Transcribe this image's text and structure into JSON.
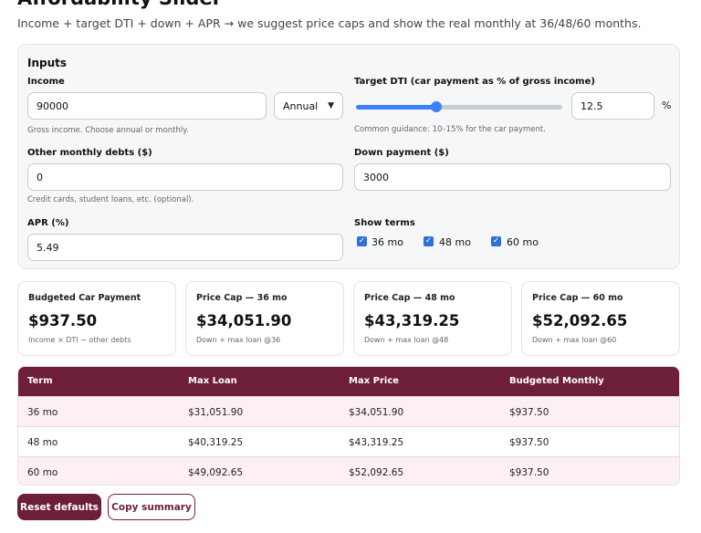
{
  "page": {
    "title": "Affordability Slider",
    "subtitle": "Income + target DTI + down + APR → we suggest price caps and show the real monthly at 36/48/60 months."
  },
  "inputs": {
    "heading": "Inputs",
    "income": {
      "label": "Income",
      "value": "90000",
      "period": "Annual",
      "hint": "Gross income. Choose annual or monthly."
    },
    "dti": {
      "label": "Target DTI (car payment as % of gross income)",
      "value": "12.5",
      "unit": "%",
      "slider_fraction": 0.39,
      "hint": "Common guidance: 10–15% for the car payment."
    },
    "other_debts": {
      "label": "Other monthly debts ($)",
      "value": "0",
      "hint": "Credit cards, student loans, etc. (optional)."
    },
    "down_payment": {
      "label": "Down payment ($)",
      "value": "3000"
    },
    "apr": {
      "label": "APR (%)",
      "value": "5.49"
    },
    "terms": {
      "label": "Show terms",
      "options": [
        {
          "label": "36 mo",
          "checked": true
        },
        {
          "label": "48 mo",
          "checked": true
        },
        {
          "label": "60 mo",
          "checked": true
        }
      ]
    }
  },
  "cards": [
    {
      "label": "Budgeted Car Payment",
      "value": "$937.50",
      "note": "Income × DTI − other debts"
    },
    {
      "label": "Price Cap — 36 mo",
      "value": "$34,051.90",
      "note": "Down + max loan @36"
    },
    {
      "label": "Price Cap — 48 mo",
      "value": "$43,319.25",
      "note": "Down + max loan @48"
    },
    {
      "label": "Price Cap — 60 mo",
      "value": "$52,092.65",
      "note": "Down + max loan @60"
    }
  ],
  "table": {
    "headers": [
      "Term",
      "Max Loan",
      "Max Price",
      "Budgeted Monthly"
    ],
    "rows": [
      [
        "36 mo",
        "$31,051.90",
        "$34,051.90",
        "$937.50"
      ],
      [
        "48 mo",
        "$40,319.25",
        "$43,319.25",
        "$937.50"
      ],
      [
        "60 mo",
        "$49,092.65",
        "$52,092.65",
        "$937.50"
      ]
    ]
  },
  "buttons": {
    "reset": "Reset defaults",
    "copy": "Copy summary"
  },
  "colors": {
    "accent": "#6e1f38",
    "slider": "#3b82f6",
    "row_tint": "#fdf0f3"
  }
}
